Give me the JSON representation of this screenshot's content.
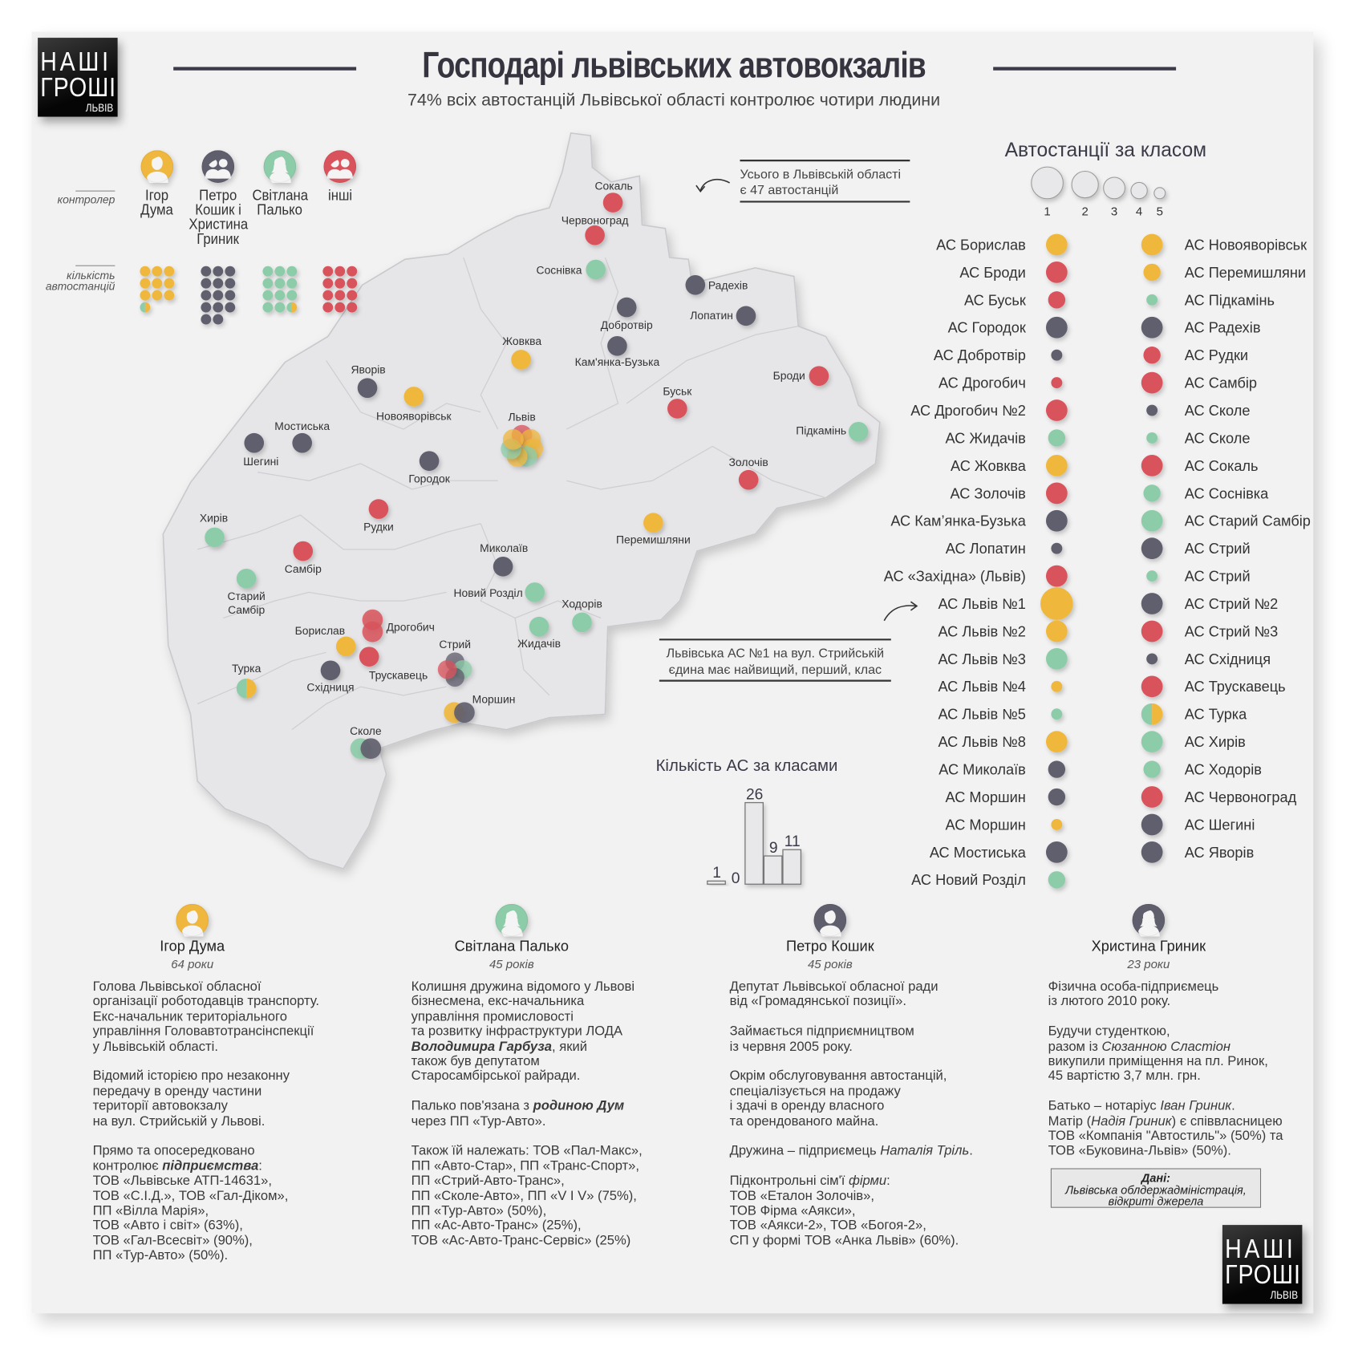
{
  "logo": {
    "line1": "НАШІ",
    "line2": "ГРОШІ",
    "line3": "ЛЬВІВ"
  },
  "header": {
    "title": "Господарі львівських автовокзалів",
    "subtitle": "74% всіх автостанцій Львівської області контролює чотири людини"
  },
  "colors": {
    "yellow": "#f0b73e",
    "red": "#d9535c",
    "dark": "#5f5e6d",
    "green": "#8dcca9",
    "map_fill": "#e6e6e8"
  },
  "legend": {
    "controller_label": "контролер",
    "count_label_line1": "кількість",
    "count_label_line2": "автостанцій",
    "controllers": [
      {
        "name_lines": [
          "Ігор",
          "Дума"
        ],
        "color": "yellow",
        "icon": "male-person-icon",
        "stations": 9.5,
        "split_with": "green"
      },
      {
        "name_lines": [
          "Петро",
          "Кошик і",
          "Христина",
          "Гриник"
        ],
        "color": "dark",
        "icon": "couple-icon",
        "stations": 14
      },
      {
        "name_lines": [
          "Світлана",
          "Палько"
        ],
        "color": "green",
        "icon": "female-person-icon",
        "stations": 11.5,
        "split_with": "yellow"
      },
      {
        "name_lines": [
          "інші"
        ],
        "color": "red",
        "icon": "group-icon",
        "stations": 12
      }
    ]
  },
  "map": {
    "total_note_line1": "Усього в Львівській області",
    "total_note_line2": "є 47 автостанцій",
    "cities": [
      {
        "label": "Сокаль",
        "markers": [
          "red"
        ]
      },
      {
        "label": "Червоноград",
        "markers": [
          "red"
        ]
      },
      {
        "label": "Соснівка",
        "markers": [
          "green"
        ]
      },
      {
        "label": "Радехів",
        "markers": [
          "dark"
        ]
      },
      {
        "label": "Добротвір",
        "markers": [
          "dark"
        ]
      },
      {
        "label": "Лопатин",
        "markers": [
          "dark"
        ]
      },
      {
        "label": "Жовква",
        "markers": [
          "yellow"
        ]
      },
      {
        "label": "Кам'янка-Бузька",
        "markers": [
          "dark"
        ]
      },
      {
        "label": "Броди",
        "markers": [
          "red"
        ]
      },
      {
        "label": "Яворів",
        "markers": [
          "dark"
        ]
      },
      {
        "label": "Новояворівськ",
        "markers": [
          "yellow"
        ]
      },
      {
        "label": "Буськ",
        "markers": [
          "red"
        ]
      },
      {
        "label": "Львів",
        "markers": [
          "red",
          "yellow",
          "yellow",
          "green",
          "yellow",
          "green",
          "yellow"
        ]
      },
      {
        "label": "Підкамінь",
        "markers": [
          "green"
        ]
      },
      {
        "label": "Мостиська",
        "markers": [
          "dark"
        ]
      },
      {
        "label": "Шегині",
        "markers": [
          "dark"
        ]
      },
      {
        "label": "Городок",
        "markers": [
          "dark"
        ]
      },
      {
        "label": "Золочів",
        "markers": [
          "red"
        ]
      },
      {
        "label": "Хирів",
        "markers": [
          "green"
        ]
      },
      {
        "label": "Рудки",
        "markers": [
          "red"
        ]
      },
      {
        "label": "Перемишляни",
        "markers": [
          "yellow"
        ]
      },
      {
        "label": "Самбір",
        "markers": [
          "red"
        ]
      },
      {
        "label": "Миколаїв",
        "markers": [
          "dark"
        ]
      },
      {
        "label": "Старий Самбір",
        "markers": [
          "green"
        ]
      },
      {
        "label": "Новий Розділ",
        "markers": [
          "green"
        ]
      },
      {
        "label": "Ходорів",
        "markers": [
          "green"
        ]
      },
      {
        "label": "Жидачів",
        "markers": [
          "green"
        ]
      },
      {
        "label": "Дрогобич",
        "markers": [
          "red",
          "red"
        ]
      },
      {
        "label": "Борислав",
        "markers": [
          "yellow"
        ]
      },
      {
        "label": "Трускавець",
        "markers": [
          "red"
        ]
      },
      {
        "label": "Стрий",
        "markers": [
          "dark",
          "green",
          "dark",
          "red"
        ]
      },
      {
        "label": "Східниця",
        "markers": [
          "dark"
        ]
      },
      {
        "label": "Турка",
        "markers": [
          "green/yellow"
        ]
      },
      {
        "label": "Моршин",
        "markers": [
          "yellow",
          "dark"
        ]
      },
      {
        "label": "Сколе",
        "markers": [
          "green",
          "dark"
        ]
      }
    ]
  },
  "class_legend": {
    "title": "Автостанції за класом",
    "classes": [
      "1",
      "2",
      "3",
      "4",
      "5"
    ]
  },
  "stations_left": [
    {
      "name": "АС Борислав",
      "color": "yellow",
      "class": 3
    },
    {
      "name": "АС Броди",
      "color": "red",
      "class": 3
    },
    {
      "name": "АС Буськ",
      "color": "red",
      "class": 4
    },
    {
      "name": "АС Городок",
      "color": "dark",
      "class": 3
    },
    {
      "name": "АС Добротвір",
      "color": "dark",
      "class": 5
    },
    {
      "name": "АС Дрогобич",
      "color": "red",
      "class": 5
    },
    {
      "name": "АС Дрогобич №2",
      "color": "red",
      "class": 3
    },
    {
      "name": "АС Жидачів",
      "color": "green",
      "class": 4
    },
    {
      "name": "АС Жовква",
      "color": "yellow",
      "class": 3
    },
    {
      "name": "АС Золочів",
      "color": "red",
      "class": 3
    },
    {
      "name": "АС Кам’янка-Бузька",
      "color": "dark",
      "class": 3
    },
    {
      "name": "АС Лопатин",
      "color": "dark",
      "class": 5
    },
    {
      "name": "АС «Західна» (Львів)",
      "color": "red",
      "class": 3
    },
    {
      "name": "АС Львів №1",
      "color": "yellow",
      "class": 1
    },
    {
      "name": "АС Львів №2",
      "color": "yellow",
      "class": 3
    },
    {
      "name": "АС Львів №3",
      "color": "green",
      "class": 3
    },
    {
      "name": "АС Львів №4",
      "color": "yellow",
      "class": 5
    },
    {
      "name": "АС Львів №5",
      "color": "green",
      "class": 5
    },
    {
      "name": "АС Львів №8",
      "color": "yellow",
      "class": 3
    },
    {
      "name": "АС Миколаїв",
      "color": "dark",
      "class": 4
    },
    {
      "name": "АС Моршин",
      "color": "dark",
      "class": 4
    },
    {
      "name": "АС Моршин",
      "color": "yellow",
      "class": 5
    },
    {
      "name": "АС Мостиська",
      "color": "dark",
      "class": 3
    },
    {
      "name": "АС Новий Розділ",
      "color": "green",
      "class": 4
    }
  ],
  "stations_right": [
    {
      "name": "АС Новояворівськ",
      "color": "yellow",
      "class": 3
    },
    {
      "name": "АС Перемишляни",
      "color": "yellow",
      "class": 4
    },
    {
      "name": "АС Підкамінь",
      "color": "green",
      "class": 5
    },
    {
      "name": "АС Радехів",
      "color": "dark",
      "class": 3
    },
    {
      "name": "АС Рудки",
      "color": "red",
      "class": 4
    },
    {
      "name": "АС Самбір",
      "color": "red",
      "class": 3
    },
    {
      "name": "АС Сколе",
      "color": "dark",
      "class": 5
    },
    {
      "name": "АС Сколе",
      "color": "green",
      "class": 5
    },
    {
      "name": "АС Сокаль",
      "color": "red",
      "class": 3
    },
    {
      "name": "АС Соснівка",
      "color": "green",
      "class": 4
    },
    {
      "name": "АС Старий Самбір",
      "color": "green",
      "class": 3
    },
    {
      "name": "АС Стрий",
      "color": "dark",
      "class": 3
    },
    {
      "name": "АС Стрий",
      "color": "green",
      "class": 5
    },
    {
      "name": "АС Стрий №2",
      "color": "dark",
      "class": 3
    },
    {
      "name": "АС Стрий №3",
      "color": "red",
      "class": 3
    },
    {
      "name": "АС Східниця",
      "color": "dark",
      "class": 5
    },
    {
      "name": "АС Трускавець",
      "color": "red",
      "class": 3
    },
    {
      "name": "АС Турка",
      "color": "green/yellow",
      "class": 3
    },
    {
      "name": "АС Хирів",
      "color": "green",
      "class": 3
    },
    {
      "name": "АС Ходорів",
      "color": "green",
      "class": 4
    },
    {
      "name": "АС Червоноград",
      "color": "red",
      "class": 3
    },
    {
      "name": "АС Шегині",
      "color": "dark",
      "class": 3
    },
    {
      "name": "АС Яворів",
      "color": "dark",
      "class": 3
    }
  ],
  "lviv1_note": {
    "line1": "Львівська АС №1 на вул. Стрийській",
    "line2": "єдина має найвищий, перший, клас"
  },
  "chart_data": {
    "type": "bar",
    "title": "Кількість АС за класами",
    "categories": [
      "1",
      "2",
      "3",
      "4",
      "5"
    ],
    "values": [
      1,
      0,
      26,
      9,
      11
    ],
    "ylim": [
      0,
      26
    ],
    "grid": false,
    "xlabel": "",
    "ylabel": ""
  },
  "profiles": [
    {
      "name": "Ігор Дума",
      "age": "64 роки",
      "color": "yellow",
      "icon": "male-person-icon",
      "paragraphs": [
        [
          "Голова Львівської обласної",
          "організації роботодавців транспорту.",
          "Екс-начальник територіального",
          "управління Головавтотрансінспекції",
          "у Львівській області."
        ],
        [
          "Відомий історією про незаконну",
          "передачу в оренду частини",
          "території автовокзалу",
          "на вул. Стрийській у Львові."
        ],
        [
          "Прямо та опосередковано",
          [
            {
              "t": "контролює "
            },
            {
              "t": "підприємства",
              "s": "bi"
            },
            {
              "t": ":"
            }
          ],
          "ТОВ «Львівське АТП-14631»,",
          "ТОВ «С.І.Д.», ТОВ «Гал-Діком»,",
          "ПП «Вілла Марія»,",
          "ТОВ «Авто і світ» (63%),",
          "ТОВ «Гал-Всесвіт» (90%),",
          "ПП «Тур-Авто» (50%)."
        ]
      ]
    },
    {
      "name": "Світлана Палько",
      "age": "45 років",
      "color": "green",
      "icon": "female-person-icon",
      "paragraphs": [
        [
          "Колишня дружина відомого у Львові",
          "бізнесмена, екс-начальника",
          "управління промисловості",
          "та розвитку інфраструктури ЛОДА",
          [
            {
              "t": "Володимира Гарбуза",
              "s": "bi"
            },
            {
              "t": ", який"
            }
          ],
          "також був депутатом",
          "Старосамбірської райради."
        ],
        [
          [
            {
              "t": "Палько пов'язана з "
            },
            {
              "t": "родиною Дум",
              "s": "bi"
            }
          ],
          "через ПП «Тур-Авто»."
        ],
        [
          "Також їй належать: ТОВ «Пал-Макс»,",
          "ПП «Авто-Стар», ПП «Транс-Спорт»,",
          "ПП «Стрий-Авто-Транс»,",
          "ПП «Сколе-Авто», ПП «V I V» (75%),",
          "ПП «Тур-Авто» (50%),",
          "ПП «Ас-Авто-Транс» (25%),",
          "ТОВ «Ас-Авто-Транс-Сервіс» (25%)"
        ]
      ]
    },
    {
      "name": "Петро Кошик",
      "age": "45 років",
      "color": "dark",
      "icon": "male-person-icon",
      "paragraphs": [
        [
          "Депутат Львівської обласної ради",
          "від «Громадянської позиції»."
        ],
        [
          "Займається підприємництвом",
          "із червня 2005 року."
        ],
        [
          "Окрім обслуговування автостанцій,",
          "спеціалізується на продажу",
          "і здачі в оренду власного",
          "та орендованого майна."
        ],
        [
          [
            {
              "t": "Дружина – підприємець "
            },
            {
              "t": "Наталія Тріль",
              "s": "i"
            },
            {
              "t": "."
            }
          ]
        ],
        [
          [
            {
              "t": "Підконтрольні сім'ї "
            },
            {
              "t": "фірми",
              "s": "i"
            },
            {
              "t": ":"
            }
          ],
          "ТОВ «Еталон Золочів»,",
          "ТОВ Фірма «Аякси»,",
          "ТОВ «Аякси-2», ТОВ «Богоя-2»,",
          "СП у формі ТОВ «Анка Львів» (60%)."
        ]
      ]
    },
    {
      "name": "Христина Гриник",
      "age": "23 роки",
      "color": "dark",
      "icon": "female-person-icon",
      "paragraphs": [
        [
          "Фізична особа-підприємець",
          "із лютого 2010 року."
        ],
        [
          "Будучи студенткою,",
          [
            {
              "t": "разом із "
            },
            {
              "t": "Сюзанною Сластіон",
              "s": "i"
            }
          ],
          "викупили приміщення на пл. Ринок,",
          "45 вартістю 3,7 млн. грн."
        ],
        [
          [
            {
              "t": "Батько – нотаріус "
            },
            {
              "t": "Іван Гриник",
              "s": "i"
            },
            {
              "t": "."
            }
          ],
          [
            {
              "t": "Матір ("
            },
            {
              "t": "Надія Гриник",
              "s": "i"
            },
            {
              "t": ") є співвласницею"
            }
          ],
          "ТОВ «Компанія \"Автостиль\"» (50%) та",
          "ТОВ «Буковина-Львів» (50%)."
        ]
      ]
    }
  ],
  "source": {
    "line1": "Дані:",
    "line2": "Львівська облдержадміністрація,",
    "line3": "відкриті джерела"
  }
}
